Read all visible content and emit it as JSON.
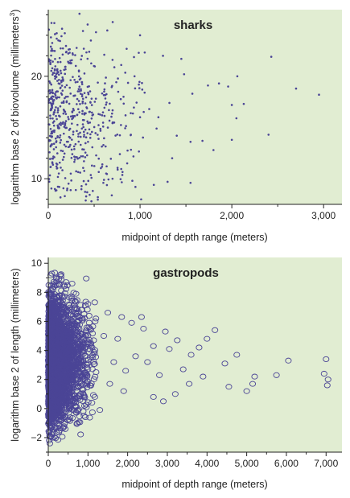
{
  "colors": {
    "panel_background": "#e1edd2",
    "marker": "#4b4596",
    "axis": "#222222"
  },
  "chart_data": [
    {
      "type": "scatter",
      "title": "sharks",
      "xlabel": "midpoint of depth range (meters)",
      "ylabel": "logarithm base 2 of biovolume (millimeters",
      "ylabel_superscript": "3",
      "ylabel_close": ")",
      "xlim": [
        0,
        3200
      ],
      "ylim": [
        7.5,
        26.5
      ],
      "xticks": [
        0,
        1000,
        2000,
        3000
      ],
      "xtick_labels": [
        "0",
        "1,000",
        "2,000",
        "3,000"
      ],
      "yticks": [
        10,
        20
      ],
      "ytick_labels": [
        "10",
        "20"
      ],
      "marker": "dot",
      "points": [
        [
          35,
          25.2
        ],
        [
          110,
          23.5
        ],
        [
          340,
          26.1
        ],
        [
          520,
          24.3
        ],
        [
          610,
          22.1
        ],
        [
          700,
          21.6
        ],
        [
          1000,
          24.0
        ],
        [
          1250,
          22.0
        ],
        [
          1450,
          21.7
        ],
        [
          1480,
          20.2
        ],
        [
          1570,
          18.3
        ],
        [
          1740,
          19.1
        ],
        [
          1860,
          19.3
        ],
        [
          1960,
          19.0
        ],
        [
          2000,
          17.2
        ],
        [
          2060,
          20.0
        ],
        [
          2130,
          17.3
        ],
        [
          2430,
          21.9
        ],
        [
          2700,
          18.8
        ],
        [
          2950,
          18.2
        ],
        [
          2050,
          15.9
        ],
        [
          2400,
          14.3
        ],
        [
          2000,
          13.8
        ],
        [
          1680,
          13.7
        ],
        [
          1800,
          12.8
        ],
        [
          1550,
          13.6
        ],
        [
          1400,
          14.2
        ],
        [
          1350,
          12.0
        ],
        [
          1180,
          14.9
        ],
        [
          1100,
          16.8
        ],
        [
          1000,
          16.0
        ],
        [
          900,
          14.3
        ],
        [
          860,
          11.5
        ],
        [
          780,
          12.4
        ],
        [
          700,
          10.0
        ],
        [
          600,
          9.6
        ],
        [
          950,
          9.2
        ],
        [
          1150,
          9.4
        ],
        [
          1300,
          9.7
        ],
        [
          1550,
          9.6
        ],
        [
          540,
          8.2
        ],
        [
          470,
          7.8
        ],
        [
          300,
          8.9
        ],
        [
          180,
          8.3
        ],
        [
          120,
          9.2
        ],
        [
          820,
          18.0
        ],
        [
          940,
          20.0
        ],
        [
          1050,
          18.4
        ],
        [
          1200,
          16.0
        ],
        [
          1320,
          17.4
        ]
      ],
      "cloud": {
        "count": 560,
        "x_scale": 330,
        "x_max": 1050,
        "y_center": 16.2,
        "y_spread": 3.9,
        "y_min": 7.8,
        "y_max": 25.5
      }
    },
    {
      "type": "scatter",
      "title": "gastropods",
      "xlabel": "midpoint of depth range (meters)",
      "ylabel": "logarithm base 2 of length (millimeters)",
      "xlim": [
        0,
        7400
      ],
      "ylim": [
        -3,
        10.4
      ],
      "xticks": [
        0,
        1000,
        2000,
        3000,
        4000,
        5000,
        6000,
        7000
      ],
      "xtick_labels": [
        "0",
        "1,000",
        "2,000",
        "3,000",
        "4,000",
        "5,000",
        "6,000",
        "7,000"
      ],
      "yticks": [
        -2,
        0,
        2,
        4,
        6,
        8,
        10
      ],
      "ytick_labels": [
        "−2",
        "0",
        "2",
        "4",
        "6",
        "8",
        "10"
      ],
      "marker": "circle",
      "points": [
        [
          7000,
          3.4
        ],
        [
          7050,
          2.0
        ],
        [
          6950,
          2.4
        ],
        [
          7030,
          1.6
        ],
        [
          6050,
          3.3
        ],
        [
          5750,
          2.3
        ],
        [
          5200,
          2.2
        ],
        [
          5150,
          1.7
        ],
        [
          5000,
          1.2
        ],
        [
          4750,
          3.7
        ],
        [
          4550,
          1.5
        ],
        [
          4450,
          3.1
        ],
        [
          4200,
          5.4
        ],
        [
          4000,
          4.8
        ],
        [
          3900,
          2.2
        ],
        [
          3800,
          4.2
        ],
        [
          3600,
          3.7
        ],
        [
          3550,
          1.7
        ],
        [
          3400,
          2.7
        ],
        [
          3250,
          4.7
        ],
        [
          3200,
          1.0
        ],
        [
          3050,
          4.1
        ],
        [
          2950,
          5.3
        ],
        [
          2900,
          0.5
        ],
        [
          2800,
          2.3
        ],
        [
          2650,
          4.3
        ],
        [
          2650,
          0.8
        ],
        [
          2500,
          3.2
        ],
        [
          2400,
          5.5
        ],
        [
          2350,
          6.3
        ],
        [
          2200,
          3.6
        ],
        [
          2100,
          5.9
        ],
        [
          1950,
          2.6
        ],
        [
          1900,
          1.2
        ],
        [
          1850,
          6.3
        ],
        [
          1750,
          4.8
        ],
        [
          1650,
          3.2
        ],
        [
          1550,
          1.7
        ],
        [
          1500,
          6.6
        ],
        [
          1400,
          5.0
        ],
        [
          1300,
          -0.1
        ],
        [
          1200,
          6.2
        ],
        [
          1150,
          3.9
        ],
        [
          1100,
          0.4
        ],
        [
          1000,
          7.2
        ],
        [
          1050,
          1.6
        ],
        [
          950,
          5.0
        ],
        [
          900,
          -0.5
        ],
        [
          850,
          6.8
        ],
        [
          800,
          2.5
        ],
        [
          700,
          7.9
        ],
        [
          600,
          8.6
        ],
        [
          550,
          -0.6
        ],
        [
          450,
          8.7
        ],
        [
          300,
          9.2
        ],
        [
          200,
          9.0
        ],
        [
          120,
          -0.2
        ],
        [
          60,
          -1.3
        ],
        [
          40,
          -2.4
        ],
        [
          80,
          -1.0
        ]
      ],
      "cloud": {
        "count": 3300,
        "x_scale": 260,
        "x_max": 1200,
        "y_center": 3.3,
        "y_spread": 2.0,
        "y_min": -2.3,
        "y_max": 9.4
      }
    }
  ]
}
